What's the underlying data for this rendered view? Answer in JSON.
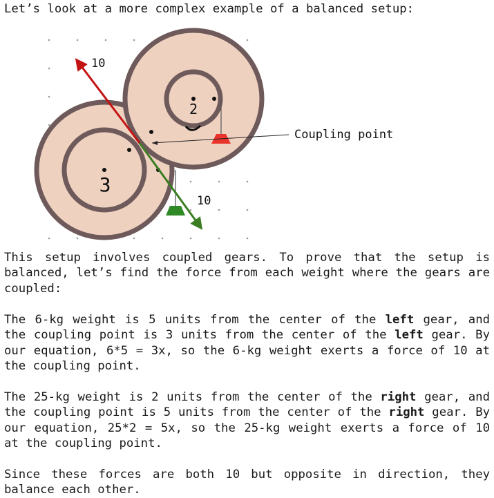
{
  "intro": "Let’s look at a more complex example of a balanced setup:",
  "figure": {
    "left_gear_label": "3",
    "right_gear_label": "2",
    "force_label_up": "10",
    "force_label_down": "10",
    "coupling_label": "Coupling point",
    "colors": {
      "gear_fill": "#efd1c0",
      "gear_rim": "#6e5a5a",
      "red_arrow": "#c41313",
      "green_arrow": "#3a7d22",
      "red_weight": "#e8342a",
      "green_weight": "#2f8a26"
    }
  },
  "paragraphs": {
    "p1": "This setup involves coupled gears. To prove that the setup is balanced, let’s find the force from each weight where the gears are coupled:",
    "p2": {
      "a": "The 6-kg weight is 5 units from the center of the ",
      "b1": "left",
      "c": " gear, and the coupling point is 3 units from the center of the ",
      "b2": "left",
      "d": " gear. By our equation, 6*5 = 3x, so the 6-kg weight exerts a force of 10 at the coupling point."
    },
    "p3": {
      "a": "The 25-kg weight is 2 units from the center of the ",
      "b1": "right",
      "c": " gear, and the coupling point is 5 units from the center of the ",
      "b2": "right",
      "d": " gear. By our equation, 25*2 = 5x, so the 25-kg weight exerts a force of 10 at the coupling point."
    },
    "p4": "Since these forces are both 10 but opposite in direction, they balance each other."
  }
}
